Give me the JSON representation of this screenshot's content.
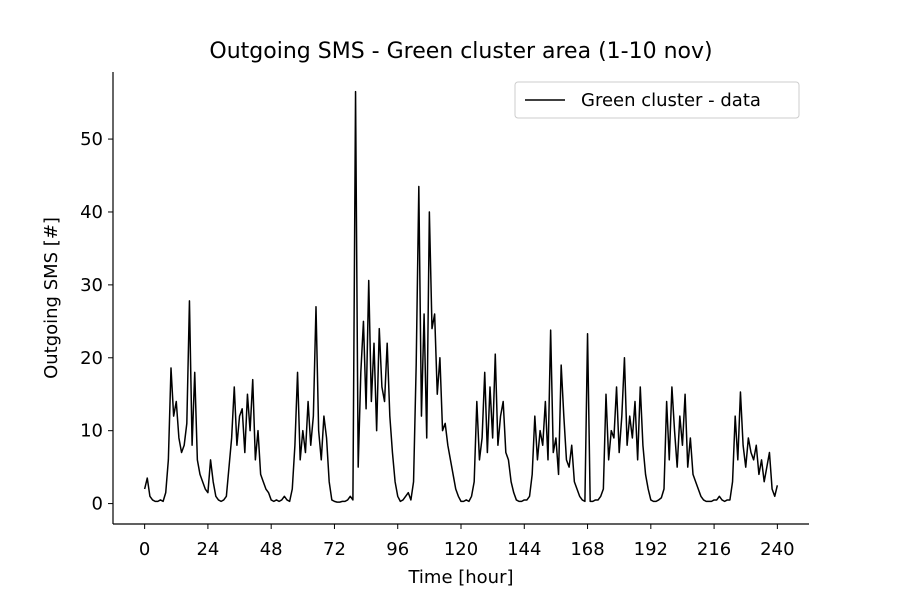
{
  "chart_data": {
    "type": "line",
    "title": "Outgoing SMS - Green cluster area (1-10 nov)",
    "x_label": "Time [hour]",
    "y_label": "Outgoing SMS [#]",
    "x": [
      0,
      1,
      2,
      3,
      4,
      5,
      6,
      7,
      8,
      9,
      10,
      11,
      12,
      13,
      14,
      15,
      16,
      17,
      18,
      19,
      20,
      21,
      22,
      23,
      24,
      25,
      26,
      27,
      28,
      29,
      30,
      31,
      32,
      33,
      34,
      35,
      36,
      37,
      38,
      39,
      40,
      41,
      42,
      43,
      44,
      45,
      46,
      47,
      48,
      49,
      50,
      51,
      52,
      53,
      54,
      55,
      56,
      57,
      58,
      59,
      60,
      61,
      62,
      63,
      64,
      65,
      66,
      67,
      68,
      69,
      70,
      71,
      72,
      73,
      74,
      75,
      76,
      77,
      78,
      79,
      80,
      81,
      82,
      83,
      84,
      85,
      86,
      87,
      88,
      89,
      90,
      91,
      92,
      93,
      94,
      95,
      96,
      97,
      98,
      99,
      100,
      101,
      102,
      103,
      104,
      105,
      106,
      107,
      108,
      109,
      110,
      111,
      112,
      113,
      114,
      115,
      116,
      117,
      118,
      119,
      120,
      121,
      122,
      123,
      124,
      125,
      126,
      127,
      128,
      129,
      130,
      131,
      132,
      133,
      134,
      135,
      136,
      137,
      138,
      139,
      140,
      141,
      142,
      143,
      144,
      145,
      146,
      147,
      148,
      149,
      150,
      151,
      152,
      153,
      154,
      155,
      156,
      157,
      158,
      159,
      160,
      161,
      162,
      163,
      164,
      165,
      166,
      167,
      168,
      169,
      170,
      171,
      172,
      173,
      174,
      175,
      176,
      177,
      178,
      179,
      180,
      181,
      182,
      183,
      184,
      185,
      186,
      187,
      188,
      189,
      190,
      191,
      192,
      193,
      194,
      195,
      196,
      197,
      198,
      199,
      200,
      201,
      202,
      203,
      204,
      205,
      206,
      207,
      208,
      209,
      210,
      211,
      212,
      213,
      214,
      215,
      216,
      217,
      218,
      219,
      220,
      221,
      222,
      223,
      224,
      225,
      226,
      227,
      228,
      229,
      230,
      231,
      232,
      233,
      234,
      235,
      236,
      237,
      238,
      239,
      240
    ],
    "series": [
      {
        "name": "Green cluster - data",
        "color": "#000000",
        "values": [
          2,
          3.5,
          1,
          0.5,
          0.3,
          0.3,
          0.5,
          0.3,
          1.5,
          6,
          18.6,
          12,
          14,
          9,
          7,
          8,
          11,
          27.8,
          8,
          18,
          6,
          4,
          3,
          2,
          1.5,
          6,
          3,
          1,
          0.5,
          0.3,
          0.5,
          1,
          5,
          9,
          16,
          8,
          12,
          13,
          7,
          15,
          10,
          17,
          6,
          10,
          4,
          3,
          2,
          1.5,
          0.5,
          0.3,
          0.5,
          0.3,
          0.5,
          1,
          0.5,
          0.3,
          2,
          8,
          18,
          6,
          10,
          7,
          14,
          8,
          12,
          27,
          10,
          6,
          12,
          9,
          3,
          0.5,
          0.3,
          0.2,
          0.2,
          0.3,
          0.3,
          0.5,
          1,
          0.5,
          56.5,
          5,
          18,
          25,
          13,
          30.6,
          14,
          22,
          10,
          24,
          16,
          14,
          22,
          12,
          7,
          3,
          1,
          0.3,
          0.5,
          1,
          1.5,
          0.5,
          3,
          19,
          43.5,
          12,
          26,
          9,
          40,
          24,
          26,
          15,
          20,
          10,
          11,
          8,
          6,
          4,
          2,
          1,
          0.3,
          0.3,
          0.5,
          0.3,
          1,
          3,
          14,
          6,
          9,
          18,
          7,
          16,
          9,
          20.5,
          8,
          12,
          14,
          7,
          6,
          3,
          1.5,
          0.5,
          0.3,
          0.3,
          0.5,
          0.5,
          1,
          4,
          12,
          6,
          10,
          8,
          14,
          6,
          23.8,
          7,
          9,
          4,
          19,
          12,
          6,
          5,
          8,
          3,
          2,
          1,
          0.5,
          0.3,
          23.3,
          0.3,
          0.3,
          0.5,
          0.5,
          1,
          2,
          15,
          6,
          10,
          9,
          16,
          7,
          12,
          20,
          8,
          12,
          9,
          14,
          6,
          16,
          8,
          4,
          2,
          0.5,
          0.3,
          0.3,
          0.5,
          0.8,
          2,
          14,
          6,
          16,
          10,
          5,
          12,
          8,
          15,
          5,
          9,
          4,
          3,
          2,
          1,
          0.5,
          0.3,
          0.3,
          0.3,
          0.5,
          0.5,
          1,
          0.5,
          0.3,
          0.5,
          0.5,
          3,
          12,
          6,
          15.3,
          8,
          5,
          9,
          7,
          6,
          8,
          4,
          6,
          3,
          5,
          7,
          2,
          1,
          2.5
        ]
      }
    ],
    "xlim": [
      -12,
      252
    ],
    "ylim": [
      -2.8,
      59.2
    ],
    "xticks": [
      0,
      24,
      48,
      72,
      96,
      120,
      144,
      168,
      192,
      216,
      240
    ],
    "yticks": [
      0,
      10,
      20,
      30,
      40,
      50
    ],
    "grid": false,
    "legend": "upper right"
  }
}
